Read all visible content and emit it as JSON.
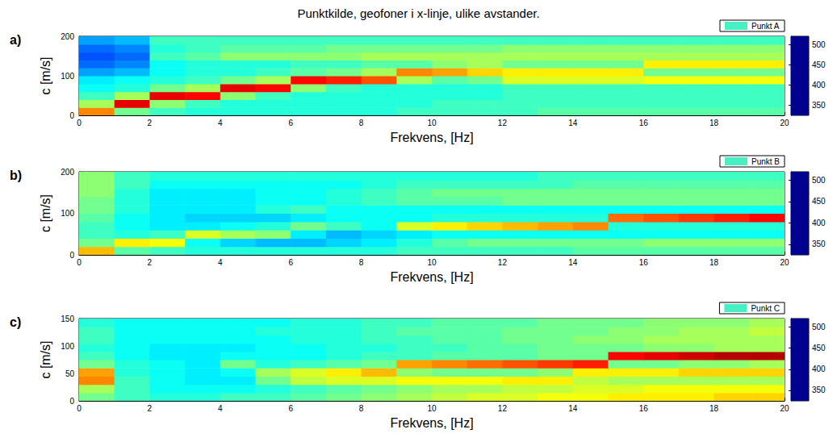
{
  "chart_data": [
    {
      "type": "heatmap",
      "title": "Punktkilde, geofoner i x-linje, ulike avstander.",
      "label": "a)",
      "x_label": "Frekvens, [Hz]",
      "y_label": "c [m/s]",
      "xlim": [
        0,
        20
      ],
      "xticks": [
        0,
        2,
        4,
        6,
        8,
        10,
        12,
        14,
        16,
        18,
        20
      ],
      "ylim": [
        0,
        200
      ],
      "yticks": [
        0,
        100,
        200
      ],
      "grid": false,
      "legend": "upper right",
      "x_bins": [
        0,
        1,
        2,
        3,
        4,
        5,
        6,
        7,
        8,
        9,
        10,
        11,
        12,
        13,
        14,
        15,
        16,
        17,
        18,
        19,
        20
      ],
      "y_bins": [
        0,
        20,
        40,
        60,
        80,
        100,
        120,
        140,
        160,
        180,
        200
      ],
      "colorbar": {
        "lim": [
          325,
          520
        ],
        "ticks": [
          350,
          400,
          450,
          500
        ]
      },
      "series": [
        {
          "name": "Punkt A",
          "color": "#46f0c4",
          "cells": [
            [
              470,
              420,
              410,
              405,
              405,
              405,
              405,
              405,
              405,
              410,
              410,
              410,
              410,
              415,
              415,
              415,
              415,
              415,
              415,
              415
            ],
            [
              430,
              500,
              425,
              410,
              405,
              405,
              405,
              405,
              405,
              405,
              410,
              410,
              410,
              410,
              410,
              410,
              410,
              410,
              410,
              410
            ],
            [
              410,
              430,
              500,
              495,
              425,
              410,
              405,
              405,
              405,
              405,
              405,
              405,
              410,
              410,
              410,
              410,
              410,
              410,
              410,
              410
            ],
            [
              400,
              405,
              420,
              430,
              500,
              495,
              425,
              410,
              405,
              405,
              405,
              405,
              410,
              410,
              410,
              410,
              410,
              410,
              410,
              410
            ],
            [
              395,
              400,
              405,
              410,
              420,
              430,
              495,
              490,
              480,
              430,
              415,
              420,
              440,
              440,
              440,
              440,
              445,
              445,
              445,
              445
            ],
            [
              380,
              385,
              400,
              405,
              405,
              410,
              415,
              420,
              430,
              470,
              465,
              455,
              450,
              450,
              450,
              450,
              420,
              420,
              420,
              420
            ],
            [
              370,
              375,
              400,
              405,
              405,
              405,
              410,
              410,
              415,
              415,
              425,
              430,
              420,
              420,
              420,
              420,
              450,
              450,
              450,
              450
            ],
            [
              365,
              370,
              410,
              415,
              425,
              425,
              425,
              425,
              430,
              430,
              430,
              430,
              430,
              430,
              430,
              430,
              430,
              430,
              430,
              430
            ],
            [
              370,
              375,
              405,
              410,
              415,
              415,
              415,
              420,
              420,
              420,
              420,
              420,
              425,
              425,
              425,
              425,
              425,
              425,
              425,
              425
            ],
            [
              380,
              385,
              410,
              410,
              410,
              410,
              410,
              410,
              410,
              410,
              410,
              410,
              410,
              410,
              410,
              410,
              410,
              410,
              410,
              410
            ]
          ]
        }
      ]
    },
    {
      "type": "heatmap",
      "label": "b)",
      "x_label": "Frekvens, [Hz]",
      "y_label": "c [m/s]",
      "xlim": [
        0,
        20
      ],
      "xticks": [
        0,
        2,
        4,
        6,
        8,
        10,
        12,
        14,
        16,
        18,
        20
      ],
      "ylim": [
        0,
        200
      ],
      "yticks": [
        0,
        100,
        200
      ],
      "grid": false,
      "legend": "upper right",
      "x_bins": [
        0,
        1,
        2,
        3,
        4,
        5,
        6,
        7,
        8,
        9,
        10,
        11,
        12,
        13,
        14,
        15,
        16,
        17,
        18,
        19,
        20
      ],
      "y_bins": [
        0,
        20,
        40,
        60,
        80,
        100,
        120,
        140,
        160,
        180,
        200
      ],
      "colorbar": {
        "lim": [
          325,
          520
        ],
        "ticks": [
          350,
          400,
          450,
          500
        ]
      },
      "series": [
        {
          "name": "Punkt B",
          "color": "#46f0c4",
          "cells": [
            [
              460,
              415,
              410,
              405,
              405,
              405,
              405,
              405,
              405,
              410,
              410,
              410,
              410,
              410,
              415,
              415,
              415,
              415,
              415,
              415
            ],
            [
              420,
              450,
              445,
              400,
              390,
              385,
              385,
              390,
              395,
              405,
              415,
              420,
              420,
              420,
              420,
              420,
              425,
              425,
              425,
              425
            ],
            [
              410,
              405,
              410,
              440,
              430,
              425,
              395,
              385,
              390,
              395,
              400,
              400,
              400,
              400,
              400,
              400,
              400,
              400,
              400,
              400
            ],
            [
              410,
              400,
              395,
              395,
              400,
              405,
              420,
              410,
              400,
              440,
              450,
              455,
              460,
              465,
              470,
              405,
              405,
              405,
              405,
              405
            ],
            [
              415,
              400,
              395,
              390,
              390,
              390,
              395,
              400,
              400,
              400,
              405,
              405,
              405,
              405,
              405,
              475,
              480,
              485,
              490,
              495
            ],
            [
              420,
              405,
              395,
              395,
              395,
              405,
              410,
              400,
              400,
              400,
              400,
              400,
              400,
              400,
              400,
              400,
              400,
              400,
              400,
              400
            ],
            [
              420,
              405,
              395,
              395,
              395,
              400,
              400,
              405,
              410,
              415,
              415,
              415,
              420,
              420,
              420,
              420,
              420,
              420,
              420,
              420
            ],
            [
              425,
              405,
              395,
              395,
              395,
              400,
              400,
              405,
              410,
              415,
              420,
              420,
              420,
              420,
              420,
              420,
              420,
              420,
              420,
              420
            ],
            [
              425,
              410,
              400,
              400,
              400,
              400,
              400,
              400,
              405,
              410,
              410,
              410,
              410,
              410,
              415,
              415,
              415,
              415,
              415,
              415
            ],
            [
              425,
              410,
              405,
              405,
              405,
              405,
              405,
              405,
              405,
              405,
              405,
              405,
              405,
              410,
              410,
              410,
              410,
              410,
              410,
              410
            ]
          ]
        }
      ]
    },
    {
      "type": "heatmap",
      "label": "c)",
      "x_label": "Frekvens, [Hz]",
      "y_label": "c [m/s]",
      "xlim": [
        0,
        20
      ],
      "xticks": [
        0,
        2,
        4,
        6,
        8,
        10,
        12,
        14,
        16,
        18,
        20
      ],
      "ylim": [
        0,
        150
      ],
      "yticks": [
        0,
        50,
        100,
        150
      ],
      "grid": false,
      "legend": "upper right",
      "x_bins": [
        0,
        1,
        2,
        3,
        4,
        5,
        6,
        7,
        8,
        9,
        10,
        11,
        12,
        13,
        14,
        15,
        16,
        17,
        18,
        19,
        20
      ],
      "y_bins": [
        0,
        15,
        30,
        45,
        60,
        75,
        90,
        105,
        120,
        135,
        150
      ],
      "colorbar": {
        "lim": [
          325,
          520
        ],
        "ticks": [
          350,
          400,
          450,
          500
        ]
      },
      "series": [
        {
          "name": "Punkt C",
          "color": "#46f0c4",
          "cells": [
            [
              420,
              410,
              405,
              405,
              410,
              410,
              415,
              420,
              425,
              430,
              435,
              440,
              440,
              445,
              445,
              450,
              450,
              450,
              455,
              455
            ],
            [
              430,
              410,
              400,
              400,
              400,
              405,
              410,
              415,
              420,
              425,
              430,
              430,
              435,
              435,
              440,
              440,
              445,
              445,
              445,
              445
            ],
            [
              470,
              410,
              400,
              395,
              395,
              420,
              435,
              440,
              440,
              445,
              445,
              445,
              450,
              450,
              435,
              430,
              430,
              430,
              430,
              430
            ],
            [
              465,
              405,
              400,
              395,
              400,
              430,
              440,
              450,
              460,
              425,
              420,
              420,
              420,
              425,
              450,
              450,
              450,
              455,
              455,
              455
            ],
            [
              420,
              405,
              400,
              395,
              420,
              405,
              410,
              415,
              420,
              465,
              470,
              475,
              480,
              485,
              490,
              420,
              420,
              425,
              425,
              430
            ],
            [
              410,
              400,
              395,
              395,
              400,
              400,
              400,
              405,
              410,
              410,
              415,
              415,
              415,
              420,
              420,
              495,
              500,
              505,
              510,
              510
            ],
            [
              405,
              400,
              395,
              395,
              395,
              400,
              400,
              405,
              405,
              410,
              410,
              415,
              415,
              420,
              420,
              420,
              425,
              425,
              430,
              430
            ],
            [
              410,
              400,
              400,
              400,
              400,
              400,
              405,
              405,
              410,
              410,
              415,
              415,
              420,
              420,
              425,
              425,
              430,
              430,
              430,
              430
            ],
            [
              410,
              400,
              400,
              400,
              400,
              405,
              405,
              405,
              410,
              415,
              415,
              415,
              420,
              420,
              420,
              425,
              425,
              430,
              430,
              435
            ],
            [
              405,
              400,
              400,
              400,
              400,
              400,
              405,
              405,
              410,
              410,
              415,
              415,
              415,
              420,
              420,
              420,
              425,
              425,
              425,
              430
            ]
          ]
        }
      ]
    }
  ]
}
